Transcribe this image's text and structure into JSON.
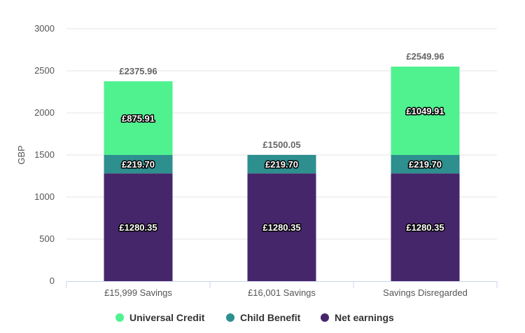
{
  "chart_data": {
    "type": "bar",
    "stacked": true,
    "categories": [
      "£15,999 Savings",
      "£16,001 Savings",
      "Savings Disregarded"
    ],
    "series": [
      {
        "name": "Net earnings",
        "color": "#46266b",
        "values": [
          1280.35,
          1280.35,
          1280.35
        ],
        "labels": [
          "£1280.35",
          "£1280.35",
          "£1280.35"
        ]
      },
      {
        "name": "Child Benefit",
        "color": "#2e8f8f",
        "values": [
          219.7,
          219.7,
          219.7
        ],
        "labels": [
          "£219.70",
          "£219.70",
          "£219.70"
        ]
      },
      {
        "name": "Universal Credit",
        "color": "#4ff28f",
        "values": [
          875.91,
          0,
          1049.91
        ],
        "labels": [
          "£875.91",
          "",
          "£1049.91"
        ]
      }
    ],
    "totals": [
      "£2375.96",
      "£1500.05",
      "£2549.96"
    ],
    "ylabel": "GBP",
    "ylim": [
      0,
      3000
    ],
    "yticks": [
      "0",
      "500",
      "1000",
      "1500",
      "2000",
      "2500",
      "3000"
    ],
    "grid": true,
    "legend": {
      "position": "bottom",
      "items": [
        {
          "label": "Universal Credit",
          "color": "#4ff28f"
        },
        {
          "label": "Child Benefit",
          "color": "#2e8f8f"
        },
        {
          "label": "Net earnings",
          "color": "#46266b"
        }
      ]
    }
  }
}
